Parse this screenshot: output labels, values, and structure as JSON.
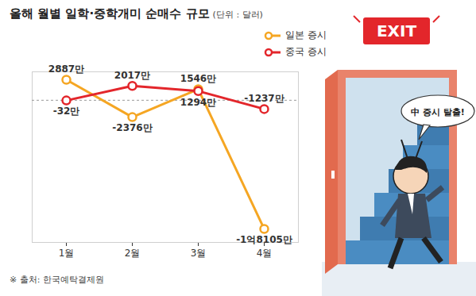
{
  "chart_data": {
    "type": "line",
    "title": "올해 월별 일학·중학개미 순매수 규모",
    "subtitle": "(단위 : 달러)",
    "caption": "※ 출처: 한국예탁결제원",
    "categories": [
      "1월",
      "2월",
      "3월",
      "4월"
    ],
    "series": [
      {
        "name": "일본 증시",
        "color": "#f5a623",
        "values": [
          2887,
          -2376,
          1546,
          -18105
        ],
        "value_labels": [
          "2887만",
          "-2376만",
          "1546만",
          "-1억8105만"
        ]
      },
      {
        "name": "중국 증시",
        "color": "#e3262b",
        "values": [
          -32,
          2017,
          1294,
          -1237
        ],
        "value_labels": [
          "-32만",
          "2017만",
          "1294만",
          "-1237만"
        ]
      }
    ],
    "ylim": [
      -20000,
      4000
    ],
    "yticks": [
      0
    ],
    "grid": true,
    "tick_labels": "x",
    "data_labels": true,
    "legend": "top-right",
    "marker": "circle",
    "annotations": [
      "EXIT",
      "中 증시 탈출!"
    ]
  }
}
